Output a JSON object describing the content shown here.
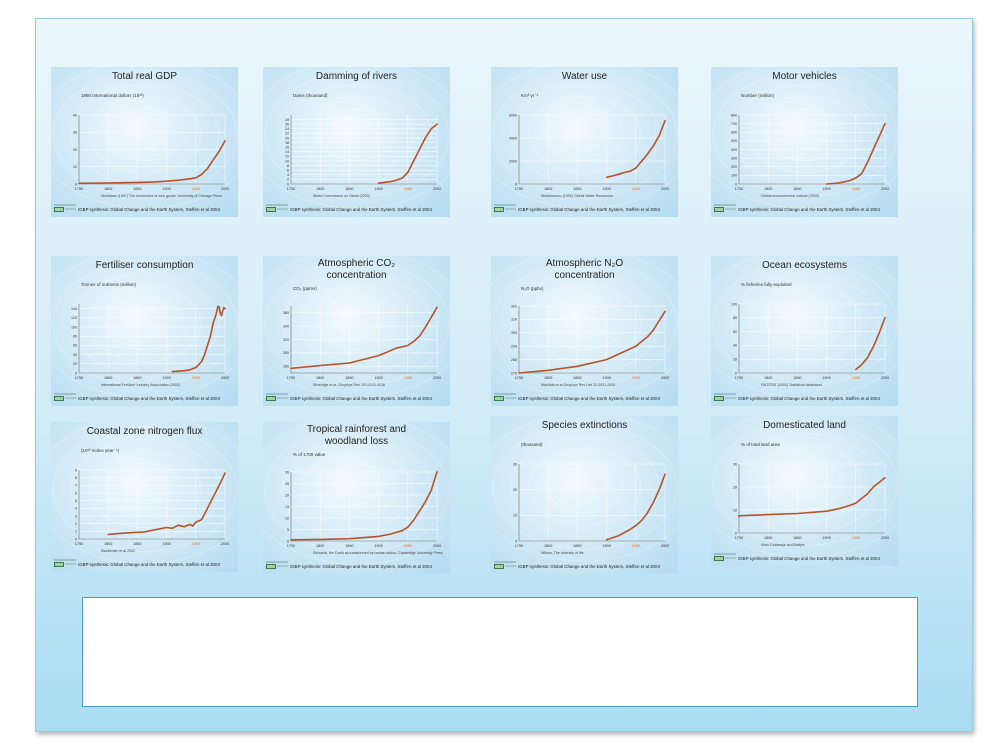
{
  "footer": "IGBP synthesis: Global Change and the Earth System, Steffen et al 2004",
  "logo_text": "GLOBAL IGBP CHANGE",
  "colors": {
    "line": "#b5542a",
    "highlight_tick": "#e07030",
    "axis": "#666666",
    "grid": "#ffffff"
  },
  "chart_data": [
    {
      "type": "line",
      "title": "Total real GDP",
      "ylabel": "1990 International dollars (10¹²)",
      "source": "Nordhaus (1997) The economics of new goods. University of Chicago Press",
      "ylim": [
        0,
        40
      ],
      "yticks": [
        0,
        10,
        20,
        30,
        40
      ],
      "xlim": [
        1750,
        2000
      ],
      "xticks": [
        1750,
        1800,
        1850,
        1900,
        1950,
        2000
      ],
      "series": [
        {
          "x": [
            1750,
            1800,
            1850,
            1880,
            1900,
            1920,
            1940,
            1950,
            1960,
            1970,
            1980,
            1990,
            2000
          ],
          "y": [
            0.4,
            0.6,
            0.9,
            1.2,
            1.6,
            2.2,
            3,
            3.6,
            5.5,
            9,
            14,
            19,
            25
          ]
        }
      ]
    },
    {
      "type": "line",
      "title": "Damming of rivers",
      "ylabel": "Dams (thousand)",
      "source": "World Commission on Dams (2000)",
      "ylim": [
        0,
        30
      ],
      "yticks": [
        0,
        2,
        4,
        6,
        8,
        10,
        12,
        14,
        16,
        18,
        20,
        22,
        24,
        26,
        28
      ],
      "ytick_labels_shown": [
        0,
        2,
        4,
        6,
        8,
        10,
        12,
        14,
        16,
        18,
        20,
        22,
        24,
        26,
        28
      ],
      "xlim": [
        1750,
        2000
      ],
      "xticks": [
        1750,
        1800,
        1850,
        1900,
        1950,
        2000
      ],
      "series": [
        {
          "x": [
            1900,
            1910,
            1920,
            1930,
            1940,
            1950,
            1960,
            1970,
            1980,
            1990,
            2000
          ],
          "y": [
            0.4,
            0.7,
            1,
            1.6,
            2.5,
            5,
            10,
            15,
            20,
            24,
            26
          ]
        }
      ]
    },
    {
      "type": "line",
      "title": "Water use",
      "ylabel": "Km³ yr⁻¹",
      "source": "Shiklomanov (1990) Global Water Resources",
      "ylim": [
        0,
        6000
      ],
      "yticks": [
        0,
        2000,
        4000,
        6000
      ],
      "xlim": [
        1750,
        2000
      ],
      "xticks": [
        1750,
        1800,
        1850,
        1900,
        1950,
        2000
      ],
      "series": [
        {
          "x": [
            1900,
            1910,
            1920,
            1930,
            1940,
            1950,
            1960,
            1970,
            1980,
            1990,
            2000
          ],
          "y": [
            580,
            700,
            840,
            1000,
            1100,
            1380,
            1980,
            2600,
            3300,
            4200,
            5500
          ]
        }
      ]
    },
    {
      "type": "line",
      "title": "Motor vehicles",
      "ylabel": "Number (million)",
      "source": "Global environmental outlook (2000)",
      "ylim": [
        0,
        800
      ],
      "yticks": [
        0,
        100,
        200,
        300,
        400,
        500,
        600,
        700,
        800
      ],
      "xlim": [
        1750,
        2000
      ],
      "xticks": [
        1750,
        1800,
        1850,
        1900,
        1950,
        2000
      ],
      "series": [
        {
          "x": [
            1900,
            1920,
            1940,
            1950,
            1960,
            1970,
            1980,
            1990,
            2000
          ],
          "y": [
            0,
            10,
            40,
            70,
            120,
            250,
            400,
            550,
            700
          ]
        }
      ]
    },
    {
      "type": "line",
      "title": "Fertiliser consumption",
      "ylabel": "Tonnes of nutrients (million)",
      "source": "International Fertilizer Industry Association (2002)",
      "ylim": [
        0,
        150
      ],
      "yticks": [
        0,
        20,
        40,
        60,
        80,
        100,
        120,
        140
      ],
      "xlim": [
        1750,
        2000
      ],
      "xticks": [
        1750,
        1800,
        1850,
        1900,
        1950,
        2000
      ],
      "series": [
        {
          "x": [
            1910,
            1920,
            1930,
            1940,
            1950,
            1955,
            1960,
            1965,
            1970,
            1975,
            1980,
            1985,
            1988,
            1990,
            1992,
            1994,
            1996,
            1998,
            2000
          ],
          "y": [
            3,
            4,
            5,
            7,
            12,
            18,
            25,
            40,
            60,
            80,
            110,
            128,
            145,
            143,
            130,
            125,
            135,
            142,
            140
          ]
        }
      ]
    },
    {
      "type": "line",
      "title": "Atmospheric CO₂ concentration",
      "ylabel": "CO₂ (ppmv)",
      "source": "Etheridge et al. Geophys Res 101:4115-4128",
      "ylim": [
        270,
        370
      ],
      "yticks": [
        280,
        300,
        320,
        340,
        360
      ],
      "xlim": [
        1750,
        2000
      ],
      "xticks": [
        1750,
        1800,
        1850,
        1900,
        1950,
        2000
      ],
      "series": [
        {
          "x": [
            1750,
            1800,
            1850,
            1900,
            1930,
            1950,
            1960,
            1970,
            1980,
            1990,
            2000
          ],
          "y": [
            277,
            281,
            285,
            296,
            307,
            311,
            317,
            325,
            338,
            353,
            368
          ]
        }
      ]
    },
    {
      "type": "line",
      "title": "Atmospheric N₂O concentration",
      "ylabel": "N₂O (ppbv)",
      "source": "Machida et al Geophys Res Lett 22:2921-2924",
      "ylim": [
        270,
        320
      ],
      "yticks": [
        270,
        280,
        290,
        300,
        310,
        320
      ],
      "xlim": [
        1750,
        2000
      ],
      "xticks": [
        1750,
        1800,
        1850,
        1900,
        1950,
        2000
      ],
      "series": [
        {
          "x": [
            1750,
            1800,
            1850,
            1900,
            1950,
            1970,
            1980,
            1990,
            2000
          ],
          "y": [
            270,
            272,
            275,
            280,
            290,
            297,
            302,
            309,
            316
          ]
        }
      ]
    },
    {
      "type": "line",
      "title": "Ocean ecosystems",
      "ylabel": "% fisheries fully exploited",
      "source": "FAOSTAT (2002) Statistical databases",
      "ylim": [
        0,
        100
      ],
      "yticks": [
        0,
        20,
        40,
        60,
        80,
        100
      ],
      "xlim": [
        1750,
        2000
      ],
      "xticks": [
        1750,
        1800,
        1850,
        1900,
        1950,
        2000
      ],
      "series": [
        {
          "x": [
            1950,
            1960,
            1970,
            1980,
            1990,
            2000
          ],
          "y": [
            5,
            12,
            22,
            38,
            58,
            80
          ]
        }
      ]
    },
    {
      "type": "line",
      "title": "Coastal zone nitrogen flux",
      "ylabel": "(10¹³ moles year⁻¹)",
      "source": "Mackenzie et al 2002",
      "ylim": [
        0,
        9
      ],
      "yticks": [
        0,
        1,
        2,
        3,
        4,
        5,
        6,
        7,
        8,
        9
      ],
      "xlim": [
        1750,
        2000
      ],
      "xticks": [
        1750,
        1800,
        1850,
        1900,
        1950,
        2000
      ],
      "series": [
        {
          "x": [
            1800,
            1830,
            1860,
            1880,
            1900,
            1910,
            1920,
            1930,
            1940,
            1945,
            1950,
            1960,
            1970,
            1980,
            1990,
            2000
          ],
          "y": [
            0.6,
            0.8,
            0.9,
            1.2,
            1.5,
            1.4,
            1.8,
            1.6,
            1.9,
            1.7,
            2.2,
            2.5,
            4,
            5.5,
            7,
            8.6
          ]
        }
      ]
    },
    {
      "type": "line",
      "title": "Tropical rainforest and woodland loss",
      "ylabel": "% of 1700 value",
      "source": "Richards, the Earth as transformed by human action, Cambridge University Press",
      "ylim": [
        0,
        30
      ],
      "yticks": [
        0,
        5,
        10,
        15,
        20,
        25,
        30
      ],
      "xlim": [
        1750,
        2000
      ],
      "xticks": [
        1750,
        1800,
        1850,
        1900,
        1950,
        2000
      ],
      "series": [
        {
          "x": [
            1750,
            1800,
            1850,
            1900,
            1920,
            1940,
            1950,
            1960,
            1970,
            1980,
            1990,
            2000
          ],
          "y": [
            0.5,
            0.7,
            1,
            2,
            3,
            4.5,
            6,
            9,
            13,
            17,
            22,
            30
          ]
        }
      ]
    },
    {
      "type": "line",
      "title": "Species extinctions",
      "ylabel": "(thousand)",
      "source": "Wilson, The diversity of life",
      "ylim": [
        0,
        30
      ],
      "yticks": [
        0,
        10,
        20,
        30
      ],
      "xlim": [
        1750,
        2000
      ],
      "xticks": [
        1750,
        1800,
        1850,
        1900,
        1950,
        2000
      ],
      "series": [
        {
          "x": [
            1900,
            1920,
            1940,
            1950,
            1960,
            1970,
            1980,
            1990,
            2000
          ],
          "y": [
            0.5,
            2,
            4.5,
            6,
            8,
            11,
            15,
            20,
            26
          ]
        }
      ]
    },
    {
      "type": "line",
      "title": "Domesticated land",
      "ylabel": "% of total land area",
      "source": "Klein Goldewijk and Battjes",
      "ylim": [
        0,
        30
      ],
      "yticks": [
        0,
        10,
        20,
        30
      ],
      "xlim": [
        1750,
        2000
      ],
      "xticks": [
        1750,
        1800,
        1850,
        1900,
        1950,
        2000
      ],
      "series": [
        {
          "x": [
            1700,
            1750,
            1800,
            1850,
            1900,
            1920,
            1940,
            1950,
            1960,
            1970,
            1980,
            1990,
            2000
          ],
          "y": [
            7,
            7.5,
            8,
            8.5,
            9.5,
            10.5,
            12,
            13,
            15,
            17,
            20,
            22,
            24
          ]
        }
      ]
    }
  ]
}
